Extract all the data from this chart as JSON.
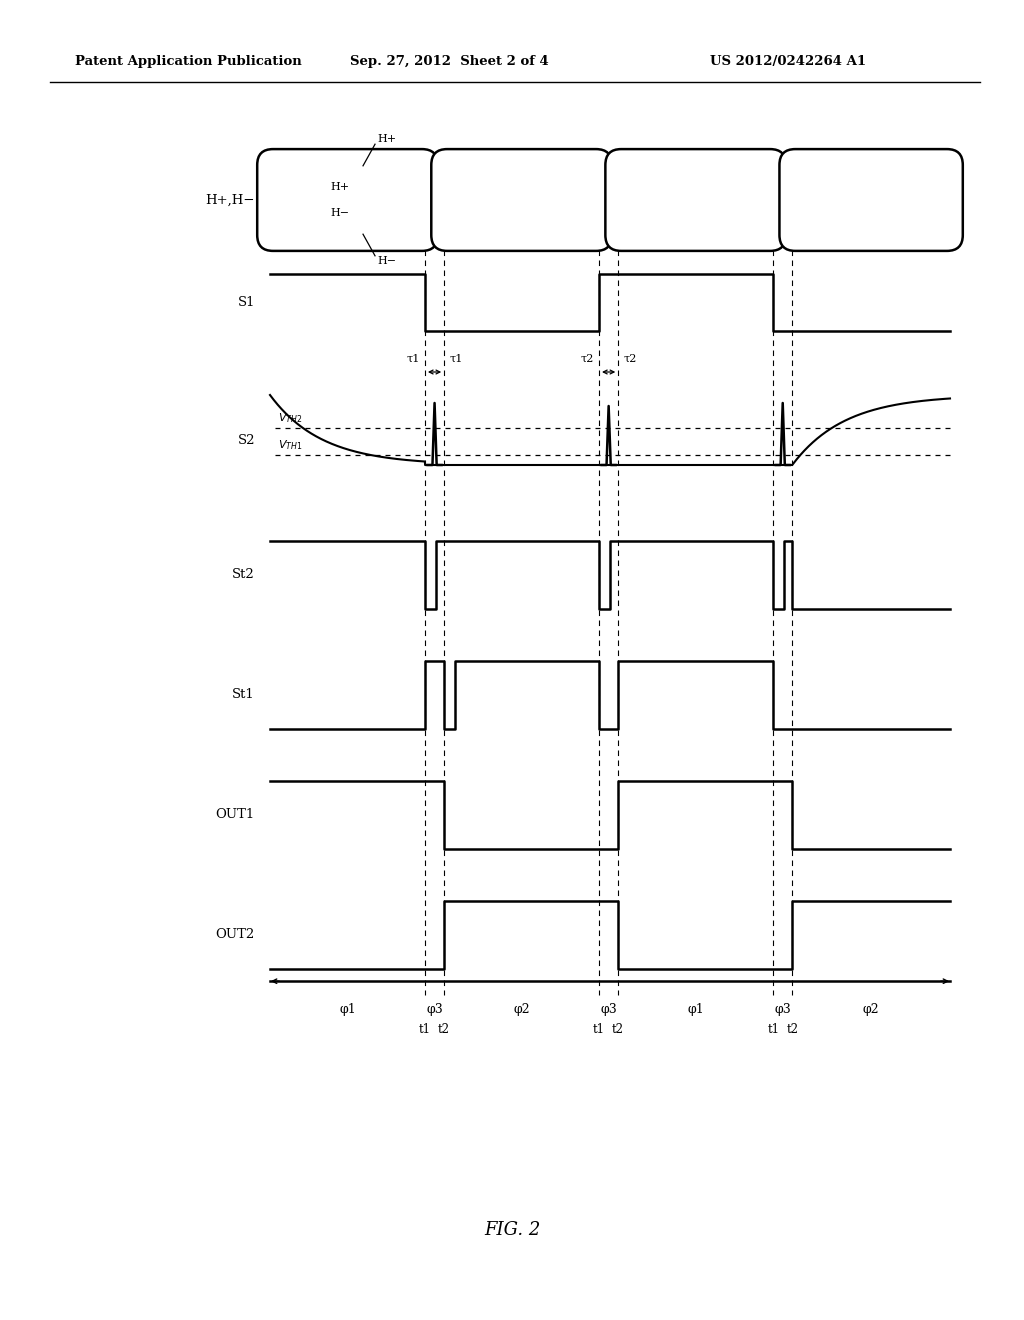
{
  "bg_color": "#ffffff",
  "header_left": "Patent Application Publication",
  "header_mid": "Sep. 27, 2012  Sheet 2 of 4",
  "header_right": "US 2012/0242264 A1",
  "fig_label": "FIG. 2",
  "signal_labels": [
    "H+,H−",
    "S1",
    "S2",
    "St2",
    "St1",
    "OUT1",
    "OUT2"
  ],
  "phi_labels": [
    "φ1",
    "φ3",
    "φ2",
    "φ3",
    "φ1",
    "φ3",
    "φ2"
  ],
  "time_labels": [
    "t1",
    "t2",
    "t1",
    "t2",
    "t1",
    "t2"
  ],
  "tau_labels": [
    "τ1",
    "τ1",
    "τ2",
    "τ2"
  ],
  "hplus_label": "H+",
  "hminus_label": "H−",
  "vth2_label": "V_{TH2}",
  "vth1_label": "V_{TH1}"
}
